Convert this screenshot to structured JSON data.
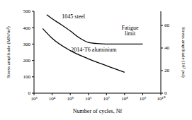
{
  "chart_data": {
    "type": "line",
    "x_label": "Number of cycles, Nf",
    "y_label": "Stress amplitude (MN/m²)",
    "y2_label": "Stress amplitude (10³ psi)",
    "log": "x",
    "grid": false,
    "xlim": [
      1000,
      10000000000
    ],
    "xticks": [
      {
        "value": 1000,
        "label": "10³"
      },
      {
        "value": 10000,
        "label": "10⁴"
      },
      {
        "value": 100000,
        "label": "10⁵"
      },
      {
        "value": 1000000,
        "label": "10⁶"
      },
      {
        "value": 10000000,
        "label": "10⁷"
      },
      {
        "value": 100000000,
        "label": "10⁸"
      },
      {
        "value": 1000000000,
        "label": "10⁹"
      },
      {
        "value": 10000000000,
        "label": "10¹⁰"
      }
    ],
    "ylim": [
      0,
      500
    ],
    "yticks": [
      0,
      100,
      200,
      300,
      400,
      500
    ],
    "y2lim": [
      0,
      72.5
    ],
    "y2ticks": [
      0,
      20,
      40,
      60
    ],
    "series": [
      {
        "name": "1045 steel",
        "color": "#000000",
        "x": [
          5000,
          10000,
          30000,
          100000,
          300000,
          1000000,
          3000000,
          10000000,
          100000000,
          1000000000
        ],
        "values": [
          480,
          455,
          420,
          380,
          340,
          310,
          303,
          300,
          300,
          300
        ]
      },
      {
        "name": "2014-T6 aluminium",
        "color": "#000000",
        "x": [
          3000,
          10000,
          100000,
          1000000,
          10000000,
          100000000
        ],
        "values": [
          395,
          335,
          260,
          210,
          168,
          128
        ]
      }
    ],
    "annotations": [
      {
        "text": "1045 steel",
        "x": 150000,
        "y": 470
      },
      {
        "text": "Fatigue",
        "x": 200000000,
        "y": 400
      },
      {
        "text": "limit",
        "x": 200000000,
        "y": 365
      },
      {
        "text": "2014-T6 aluminium",
        "x": 2000000,
        "y": 265
      }
    ]
  }
}
